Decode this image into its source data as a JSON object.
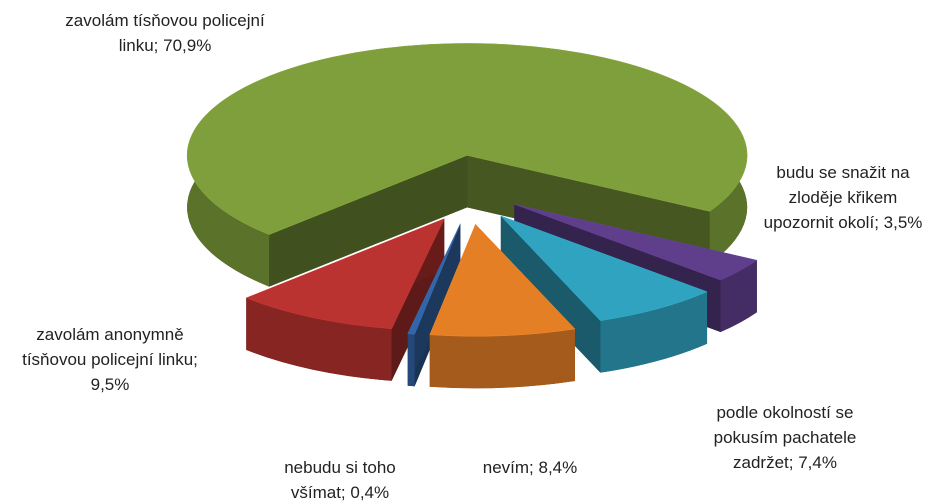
{
  "chart_data": {
    "type": "pie3d",
    "categories": [
      "zavolám tísňovou policejní linku",
      "budu se snažit na zloděje křikem upozornit okolí",
      "podle okolností se pokusím pachatele zadržet",
      "nevím",
      "nebudu si toho všímat",
      "zavolám anonymně tísňovou policejní linku"
    ],
    "values": [
      70.9,
      3.5,
      7.4,
      8.4,
      0.4,
      9.5
    ],
    "value_labels": [
      "70,9%",
      "3,5%",
      "7,4%",
      "8,4%",
      "0,4%",
      "9,5%"
    ],
    "colors": [
      "#7f9f3c",
      "#5f3f8c",
      "#2fa3c0",
      "#e47f25",
      "#3266a8",
      "#bb3330"
    ]
  }
}
